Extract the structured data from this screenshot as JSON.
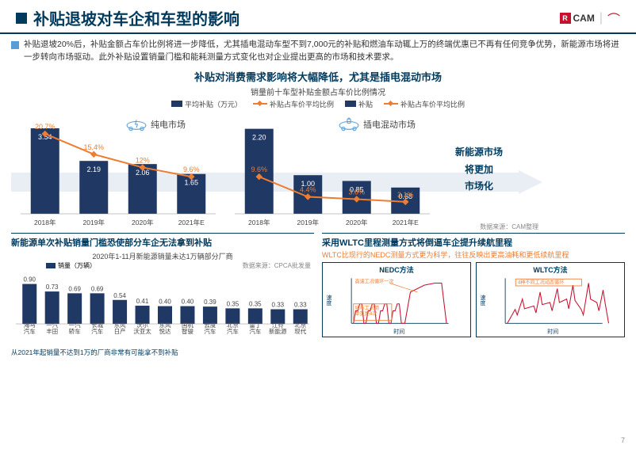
{
  "title": "补贴退坡对车企和车型的影响",
  "logo_cam": "CAM",
  "intro": "补贴退坡20%后，补贴金额占车价比例将进一步降低，尤其插电混动车型不到7,000元的补贴和燃油车动辄上万的终端优惠已不再有任何竞争优势，新能源市场将进一步转向市场驱动。此外补贴设置销量门槛和能耗测量方式变化也对企业提出更高的市场和技术要求。",
  "section1": {
    "title": "补贴对消费需求影响将大幅降低，尤其是插电混动市场",
    "subtitle": "销量前十车型补贴金额占车价比例情况",
    "legend": [
      "平均补贴（万元）",
      "补贴占车价平均比例",
      "补贴",
      "补贴占车价平均比例"
    ],
    "colors": {
      "bar": "#1f3864",
      "line": "#ed7d31"
    },
    "panel_a": {
      "label": "纯电市场",
      "years": [
        "2018年",
        "2019年",
        "2020年",
        "2021年E"
      ],
      "bars": [
        3.54,
        2.19,
        2.06,
        1.65
      ],
      "line": [
        20.7,
        15.4,
        12.0,
        9.6
      ],
      "ymax": 4.0
    },
    "panel_b": {
      "label": "插电混动市场",
      "years": [
        "2018年",
        "2019年",
        "2020年",
        "2021年E"
      ],
      "bars": [
        2.2,
        1.0,
        0.85,
        0.68
      ],
      "line": [
        9.6,
        4.4,
        3.8,
        3.1
      ],
      "ymax": 2.5
    },
    "side_text": [
      "新能源市场",
      "将更加",
      "市场化"
    ],
    "source": "数据来源：CAM整理"
  },
  "section2": {
    "title": "新能源单次补贴销量门槛恐使部分车企无法拿到补贴",
    "subtitle": "2020年1-11月新能源销量未达1万辆部分厂商",
    "legend": "销量（万辆）",
    "source": "数据来源：CPCA批发量",
    "labels": [
      "海马汽车",
      "一汽丰田",
      "一汽轿车",
      "长城汽车",
      "东风日产",
      "沃尔沃亚太",
      "东风悦达",
      "国机智骏",
      "云度汽车",
      "北京汽车",
      "雷丁汽车",
      "江铃新能源",
      "北京现代"
    ],
    "values": [
      0.9,
      0.73,
      0.69,
      0.69,
      0.54,
      0.41,
      0.4,
      0.4,
      0.39,
      0.35,
      0.35,
      0.33,
      0.33
    ],
    "color": "#1f3864",
    "ymax": 1.0,
    "footnote": "从2021年起销量不达到1万的厂商非常有可能拿不到补贴"
  },
  "section3": {
    "title": "采用WLTC里程测量方式将倒逼车企提升续航里程",
    "text": "WLTC比现行的NEDC测量方式更为科学，往往反映出更高油耗和更低续航里程",
    "chart_a": {
      "title": "NEDC方法",
      "ann1": "高速工况循环一次",
      "ann2": "城市工况简单重复4次",
      "color": "#c8102e"
    },
    "chart_b": {
      "title": "WLTC方法",
      "ann": "4种不同工况动态循环",
      "color": "#c8102e"
    },
    "xlabel": "时间",
    "ylabel": "速度"
  },
  "pagenum": "7"
}
